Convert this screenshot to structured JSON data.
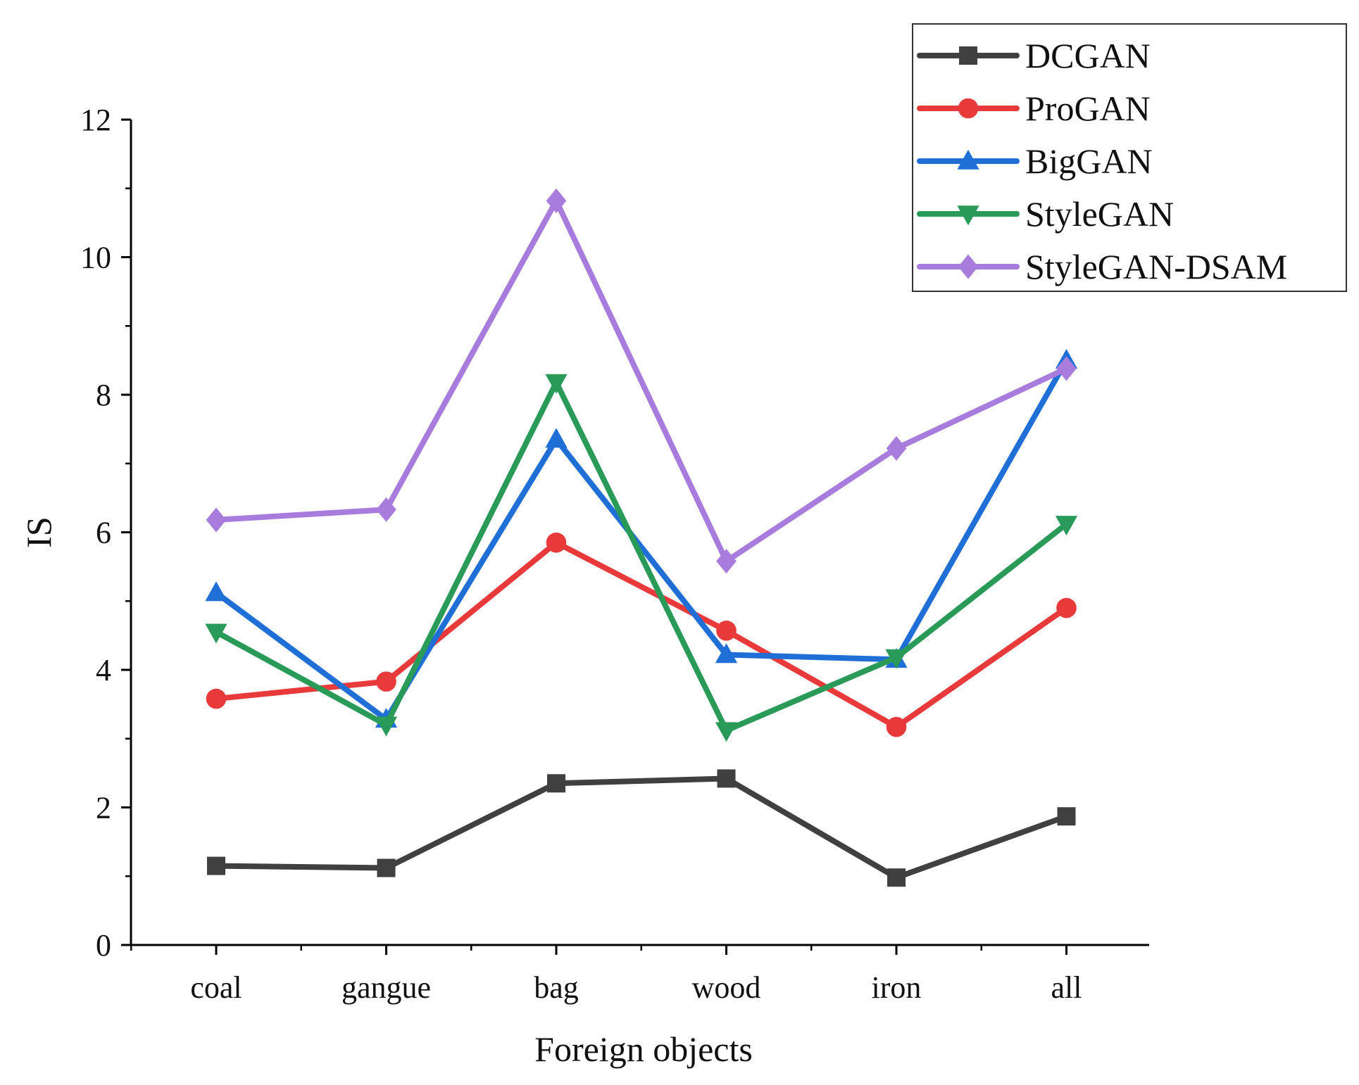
{
  "chart_data": {
    "type": "line",
    "xlabel": "Foreign objects",
    "ylabel": "IS",
    "categories": [
      "coal",
      "gangue",
      "bag",
      "wood",
      "iron",
      "all"
    ],
    "ylim": [
      0,
      12
    ],
    "yticks": [
      "0",
      "2",
      "4",
      "6",
      "8",
      "10",
      "12"
    ],
    "legend_position": "top-right",
    "grid": false,
    "series": [
      {
        "name": "DCGAN",
        "color": "#404040",
        "marker": "square",
        "values": [
          1.15,
          1.12,
          2.35,
          2.42,
          0.98,
          1.87
        ]
      },
      {
        "name": "ProGAN",
        "color": "#e8393b",
        "marker": "circle",
        "values": [
          3.58,
          3.83,
          5.85,
          4.57,
          3.17,
          4.9
        ]
      },
      {
        "name": "BigGAN",
        "color": "#1f6fd6",
        "marker": "triangle-up",
        "values": [
          5.12,
          3.28,
          7.35,
          4.22,
          4.15,
          8.5
        ]
      },
      {
        "name": "StyleGAN",
        "color": "#2a9a58",
        "marker": "triangle-down",
        "values": [
          4.55,
          3.2,
          8.18,
          3.12,
          4.18,
          6.12
        ]
      },
      {
        "name": "StyleGAN-DSAM",
        "color": "#a87cdc",
        "marker": "diamond",
        "values": [
          6.18,
          6.33,
          10.82,
          5.58,
          7.22,
          8.38
        ]
      }
    ]
  }
}
